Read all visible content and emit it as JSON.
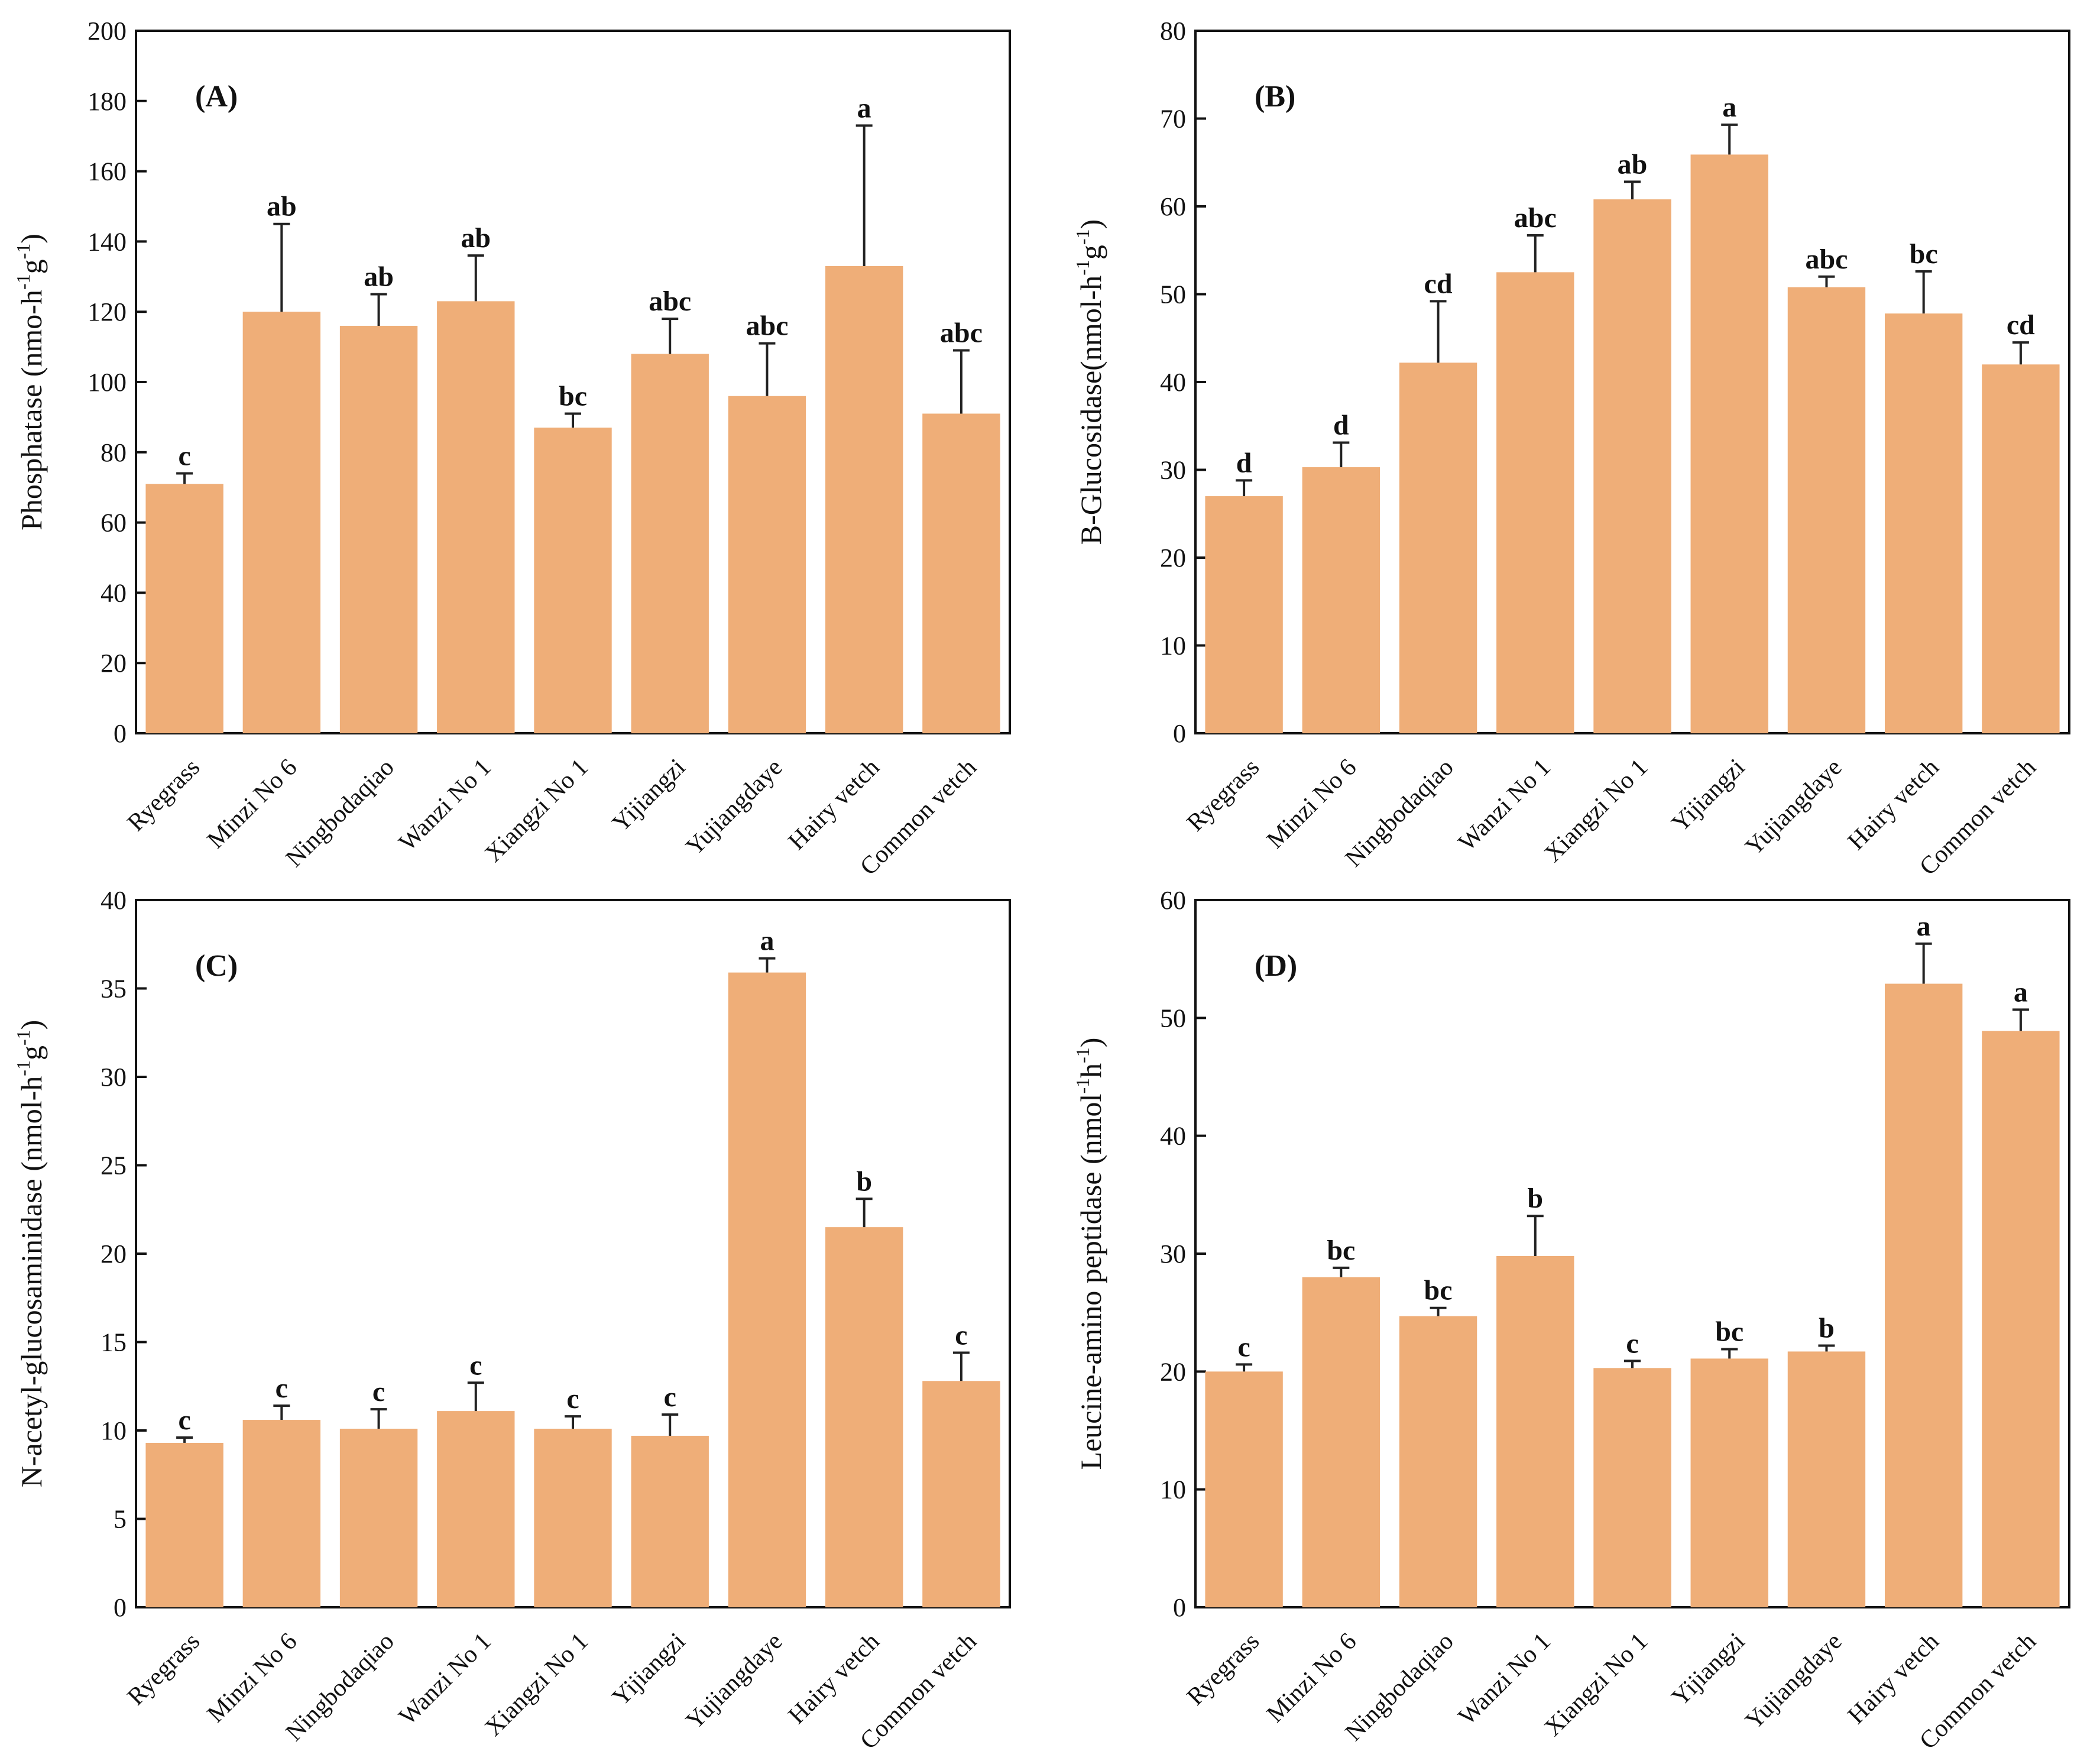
{
  "colors": {
    "bar": "#efae78",
    "axis": "#111111",
    "error": "#222222"
  },
  "chart_data": [
    {
      "panel_label": "(A)",
      "type": "bar",
      "title": "",
      "xlabel": "",
      "ylabel": "Phosphatase (nmo-h",
      "ylabel_sup1": "-1",
      "ylabel_mid": "g",
      "ylabel_sup2": "-1",
      "ylabel_end": ")",
      "ylim": [
        0,
        200
      ],
      "yticks": [
        0,
        20,
        40,
        60,
        80,
        100,
        120,
        140,
        160,
        180,
        200
      ],
      "categories": [
        "Ryegrass",
        "Minzi No 6",
        "Ningbodaqiao",
        "Wanzi No 1",
        "Xiangzi No 1",
        "Yijiangzi",
        "Yujiangdaye",
        "Hairy vetch",
        "Common vetch"
      ],
      "values": [
        71,
        120,
        116,
        123,
        87,
        108,
        96,
        133,
        91
      ],
      "errors": [
        3,
        25,
        9,
        13,
        4,
        10,
        15,
        40,
        18
      ],
      "letters": [
        "c",
        "ab",
        "ab",
        "ab",
        "bc",
        "abc",
        "abc",
        "a",
        "abc"
      ]
    },
    {
      "panel_label": "(B)",
      "type": "bar",
      "title": "",
      "xlabel": "",
      "ylabel": "B-Glucosidase(nmol-h",
      "ylabel_sup1": "-1",
      "ylabel_mid": "g",
      "ylabel_sup2": "-1",
      "ylabel_end": ")",
      "ylim": [
        0,
        80
      ],
      "yticks": [
        0,
        10,
        20,
        30,
        40,
        50,
        60,
        70,
        80
      ],
      "categories": [
        "Ryegrass",
        "Minzi No 6",
        "Ningbodaqiao",
        "Wanzi No 1",
        "Xiangzi No 1",
        "Yijiangzi",
        "Yujiangdaye",
        "Hairy vetch",
        "Common vetch"
      ],
      "values": [
        27,
        30.3,
        42.2,
        52.5,
        60.8,
        65.9,
        50.8,
        47.8,
        42
      ],
      "errors": [
        1.8,
        2.8,
        7,
        4.2,
        2,
        3.4,
        1.2,
        4.8,
        2.5
      ],
      "letters": [
        "d",
        "d",
        "cd",
        "abc",
        "ab",
        "a",
        "abc",
        "bc",
        "cd"
      ]
    },
    {
      "panel_label": "(C)",
      "type": "bar",
      "title": "",
      "xlabel": "",
      "ylabel": "N-acetyl-glucosaminidase (nmol-h",
      "ylabel_sup1": "-1",
      "ylabel_mid": "g",
      "ylabel_sup2": "-1",
      "ylabel_end": ")",
      "ylim": [
        0,
        40
      ],
      "yticks": [
        0,
        5,
        10,
        15,
        20,
        25,
        30,
        35,
        40
      ],
      "categories": [
        "Ryegrass",
        "Minzi No 6",
        "Ningbodaqiao",
        "Wanzi No 1",
        "Xiangzi No 1",
        "Yijiangzi",
        "Yujiangdaye",
        "Hairy vetch",
        "Common vetch"
      ],
      "values": [
        9.3,
        10.6,
        10.1,
        11.1,
        10.1,
        9.7,
        35.9,
        21.5,
        12.8
      ],
      "errors": [
        0.3,
        0.8,
        1.1,
        1.6,
        0.7,
        1.2,
        0.8,
        1.6,
        1.6
      ],
      "letters": [
        "c",
        "c",
        "c",
        "c",
        "c",
        "c",
        "a",
        "b",
        "c"
      ]
    },
    {
      "panel_label": "(D)",
      "type": "bar",
      "title": "",
      "xlabel": "",
      "ylabel": "Leucine-amino peptidase  (nmol",
      "ylabel_sup1": "-1",
      "ylabel_mid": "h",
      "ylabel_sup2": "-1",
      "ylabel_end": ")",
      "ylim": [
        0,
        60
      ],
      "yticks": [
        0,
        10,
        20,
        30,
        40,
        50,
        60
      ],
      "categories": [
        "Ryegrass",
        "Minzi No 6",
        "Ningbodaqiao",
        "Wanzi No 1",
        "Xiangzi No 1",
        "Yijiangzi",
        "Yujiangdaye",
        "Hairy vetch",
        "Common vetch"
      ],
      "values": [
        20,
        28,
        24.7,
        29.8,
        20.3,
        21.1,
        21.7,
        52.9,
        48.9
      ],
      "errors": [
        0.6,
        0.8,
        0.7,
        3.4,
        0.6,
        0.8,
        0.5,
        3.4,
        1.8
      ],
      "letters": [
        "c",
        "bc",
        "bc",
        "b",
        "c",
        "bc",
        "b",
        "a",
        "a"
      ]
    }
  ]
}
